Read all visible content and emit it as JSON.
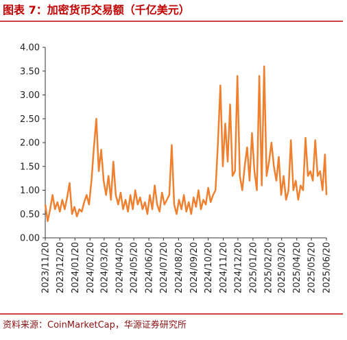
{
  "chart_data": {
    "type": "line",
    "title": "图表 7：加密货币交易额（千亿美元）",
    "source": "资料来源：CoinMarketCap，华源证券研究所",
    "x": [
      "2023/11/20",
      "2023/11/25",
      "2023/11/30",
      "2023/12/05",
      "2023/12/10",
      "2023/12/15",
      "2023/12/20",
      "2023/12/25",
      "2023/12/30",
      "2024/01/04",
      "2024/01/09",
      "2024/01/14",
      "2024/01/19",
      "2024/01/24",
      "2024/01/29",
      "2024/02/03",
      "2024/02/08",
      "2024/02/13",
      "2024/02/18",
      "2024/02/23",
      "2024/02/28",
      "2024/03/04",
      "2024/03/09",
      "2024/03/14",
      "2024/03/19",
      "2024/03/24",
      "2024/03/29",
      "2024/04/03",
      "2024/04/08",
      "2024/04/13",
      "2024/04/18",
      "2024/04/23",
      "2024/04/28",
      "2024/05/03",
      "2024/05/08",
      "2024/05/13",
      "2024/05/18",
      "2024/05/23",
      "2024/05/28",
      "2024/06/02",
      "2024/06/07",
      "2024/06/12",
      "2024/06/17",
      "2024/06/22",
      "2024/06/27",
      "2024/07/02",
      "2024/07/07",
      "2024/07/12",
      "2024/07/17",
      "2024/07/22",
      "2024/07/27",
      "2024/08/01",
      "2024/08/06",
      "2024/08/11",
      "2024/08/16",
      "2024/08/21",
      "2024/08/26",
      "2024/08/31",
      "2024/09/05",
      "2024/09/10",
      "2024/09/15",
      "2024/09/20",
      "2024/09/25",
      "2024/09/30",
      "2024/10/05",
      "2024/10/10",
      "2024/10/15",
      "2024/10/20",
      "2024/10/25",
      "2024/10/30",
      "2024/11/04",
      "2024/11/09",
      "2024/11/14",
      "2024/11/19",
      "2024/11/24",
      "2024/11/29",
      "2024/12/04",
      "2024/12/09",
      "2024/12/14",
      "2024/12/19",
      "2024/12/24",
      "2024/12/29",
      "2025/01/03",
      "2025/01/08",
      "2025/01/13",
      "2025/01/18",
      "2025/01/23",
      "2025/01/28",
      "2025/02/02",
      "2025/02/07",
      "2025/02/12",
      "2025/02/17",
      "2025/02/22",
      "2025/02/27",
      "2025/03/04",
      "2025/03/09",
      "2025/03/14",
      "2025/03/19",
      "2025/03/24",
      "2025/03/29",
      "2025/04/03",
      "2025/04/08",
      "2025/04/13",
      "2025/04/18",
      "2025/04/23",
      "2025/04/28",
      "2025/05/03",
      "2025/05/08",
      "2025/05/13",
      "2025/05/18",
      "2025/05/23",
      "2025/05/28",
      "2025/06/02",
      "2025/06/07",
      "2025/06/12",
      "2025/06/17",
      "2025/06/20"
    ],
    "series": [
      {
        "color": "#ef8030",
        "values": [
          0.7,
          0.35,
          0.6,
          0.9,
          0.6,
          0.75,
          0.55,
          0.8,
          0.6,
          0.85,
          1.15,
          0.5,
          0.65,
          0.45,
          0.6,
          0.55,
          0.75,
          0.9,
          0.7,
          1.2,
          1.9,
          2.5,
          1.4,
          1.85,
          1.2,
          0.9,
          1.3,
          0.8,
          1.6,
          0.9,
          0.7,
          0.95,
          0.6,
          0.8,
          0.55,
          0.9,
          0.6,
          1.0,
          0.7,
          0.85,
          0.6,
          0.75,
          0.5,
          0.9,
          0.6,
          1.1,
          0.7,
          0.55,
          0.95,
          0.7,
          0.8,
          0.9,
          1.95,
          0.7,
          0.5,
          0.8,
          0.6,
          0.9,
          0.55,
          0.75,
          0.5,
          0.85,
          0.65,
          1.0,
          0.6,
          0.8,
          0.7,
          1.05,
          0.75,
          0.9,
          1.0,
          2.0,
          3.2,
          1.5,
          2.4,
          1.6,
          2.8,
          1.3,
          1.4,
          3.4,
          1.3,
          1.0,
          1.5,
          1.9,
          1.2,
          2.2,
          1.4,
          1.0,
          3.4,
          1.1,
          3.6,
          1.3,
          1.6,
          2.0,
          1.5,
          1.2,
          1.7,
          0.9,
          1.3,
          0.8,
          1.0,
          2.05,
          1.0,
          1.2,
          0.8,
          1.1,
          1.0,
          2.1,
          1.3,
          1.4,
          1.2,
          2.05,
          1.3,
          1.4,
          1.0,
          1.75,
          0.9
        ]
      }
    ],
    "xlim": [
      "2023/11/20",
      "2025/06/20"
    ],
    "xticks": [
      "2023/11/20",
      "2023/12/20",
      "2024/01/20",
      "2024/02/20",
      "2024/03/20",
      "2024/04/20",
      "2024/05/20",
      "2024/06/20",
      "2024/07/20",
      "2024/08/20",
      "2024/09/20",
      "2024/10/20",
      "2024/11/20",
      "2024/12/20",
      "2025/01/20",
      "2025/02/20",
      "2025/03/20",
      "2025/04/20",
      "2025/05/20",
      "2025/06/20"
    ],
    "ylim": [
      0,
      4
    ],
    "yticks": [
      {
        "value": 0,
        "label": "0.00"
      },
      {
        "value": 0.5,
        "label": "0.50"
      },
      {
        "value": 1,
        "label": "1.00"
      },
      {
        "value": 1.5,
        "label": "1.50"
      },
      {
        "value": 2,
        "label": "2.00"
      },
      {
        "value": 2.5,
        "label": "2.50"
      },
      {
        "value": 3,
        "label": "3.00"
      },
      {
        "value": 3.5,
        "label": "3.50"
      },
      {
        "value": 4,
        "label": "4.00"
      }
    ],
    "grid": false
  }
}
